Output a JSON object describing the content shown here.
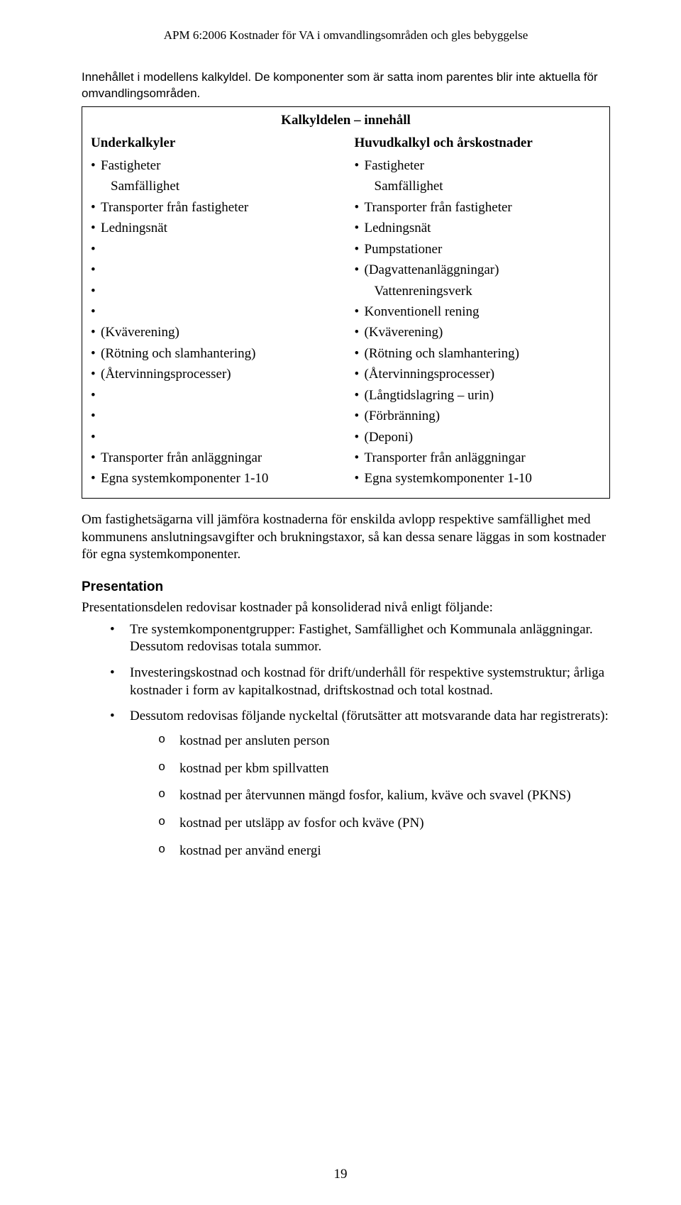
{
  "runningHead": "APM 6:2006  Kostnader för VA i omvandlingsområden och gles bebyggelse",
  "caption": "Innehållet i modellens kalkyldel. De komponenter som är satta inom parentes blir inte aktuella för omvandlingsområden.",
  "tableTitle": "Kalkyldelen – innehåll",
  "left": {
    "header": "Underkalkyler",
    "items": [
      {
        "text": "Fastigheter"
      },
      {
        "text": "Samfällighet",
        "nobullet": true,
        "indent": true
      },
      {
        "text": "Transporter från fastigheter"
      },
      {
        "text": "Ledningsnät"
      },
      {
        "text": ""
      },
      {
        "text": ""
      },
      {
        "text": ""
      },
      {
        "text": ""
      },
      {
        "text": "(Kväverening)"
      },
      {
        "text": "(Rötning och slamhantering)"
      },
      {
        "text": "(Återvinningsprocesser)"
      },
      {
        "text": ""
      },
      {
        "text": ""
      },
      {
        "text": ""
      },
      {
        "text": "Transporter från anläggningar"
      },
      {
        "text": "Egna systemkomponenter 1-10"
      }
    ]
  },
  "right": {
    "header": "Huvudkalkyl och årskostnader",
    "items": [
      {
        "text": "Fastigheter"
      },
      {
        "text": "Samfällighet",
        "nobullet": true,
        "indent": true
      },
      {
        "text": "Transporter från fastigheter"
      },
      {
        "text": "Ledningsnät"
      },
      {
        "text": "Pumpstationer"
      },
      {
        "text": "(Dagvattenanläggningar)"
      },
      {
        "text": "Vattenreningsverk",
        "nobullet": true,
        "indent": true
      },
      {
        "text": "Konventionell rening"
      },
      {
        "text": "(Kväverening)"
      },
      {
        "text": "(Rötning och slamhantering)"
      },
      {
        "text": "(Återvinningsprocesser)"
      },
      {
        "text": "(Långtidslagring – urin)"
      },
      {
        "text": "(Förbränning)"
      },
      {
        "text": "(Deponi)"
      },
      {
        "text": "Transporter från anläggningar"
      },
      {
        "text": "Egna systemkomponenter 1-10"
      }
    ]
  },
  "afterTable": "Om fastighetsägarna vill jämföra kostnaderna för enskilda avlopp respektive samfällighet med kommunens anslutningsavgifter och brukningstaxor, så kan dessa senare läggas in som kostnader för egna systemkomponenter.",
  "presentation": {
    "heading": "Presentation",
    "intro": "Presentationsdelen redovisar kostnader på konsoliderad nivå enligt följande:",
    "bullets": [
      "Tre systemkomponentgrupper: Fastighet, Samfällighet och Kommunala anläggningar. Dessutom redovisas totala summor.",
      "Investeringskostnad och kostnad för drift/underhåll för respektive systemstruktur; årliga kostnader i form av kapitalkostnad, driftskostnad och total kostnad.",
      "Dessutom redovisas följande nyckeltal (förutsätter att motsvarande data har registrerats):"
    ],
    "sub": [
      "kostnad per ansluten person",
      "kostnad per kbm spillvatten",
      "kostnad per återvunnen mängd fosfor, kalium, kväve och svavel (PKNS)",
      "kostnad per utsläpp av fosfor och kväve (PN)",
      "kostnad per använd energi"
    ]
  },
  "pageNumber": "19"
}
